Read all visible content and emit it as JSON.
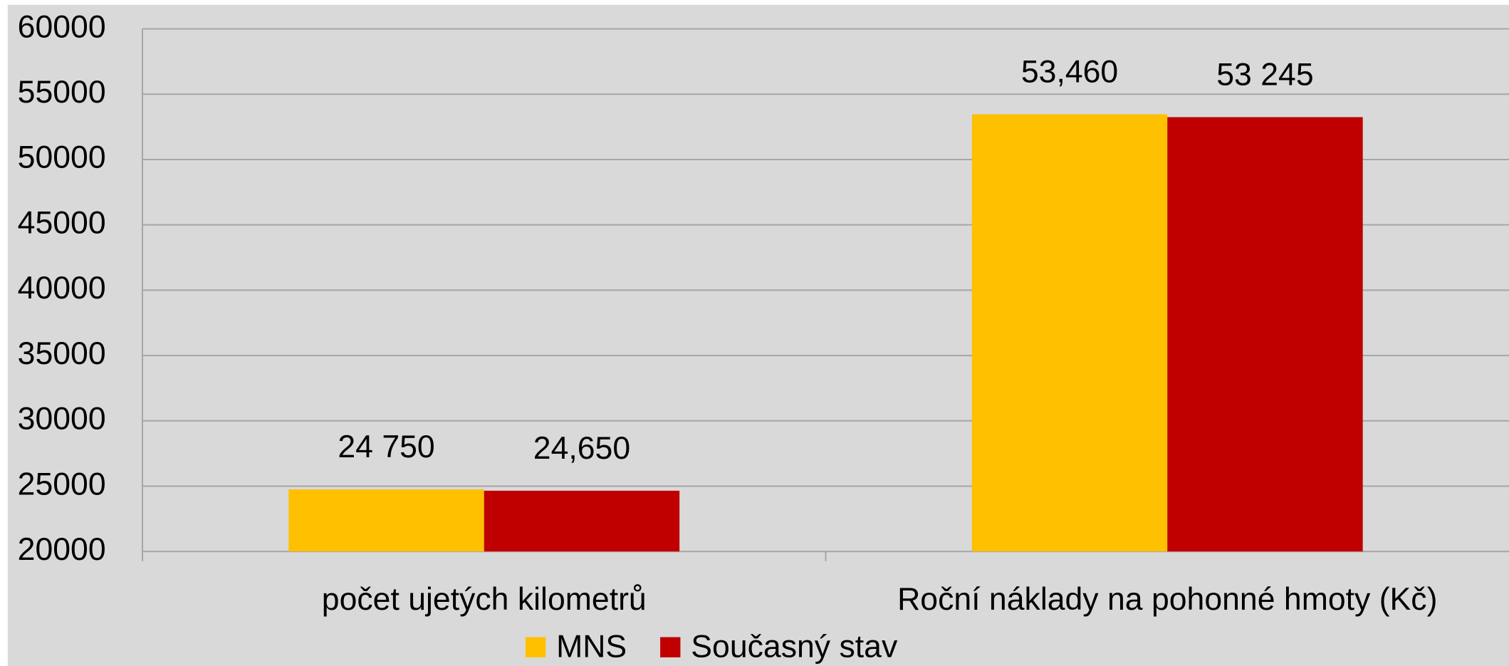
{
  "chart_data": {
    "type": "bar",
    "categories": [
      "počet ujetých kilometrů",
      "Roční náklady na pohonné hmoty (Kč)"
    ],
    "series": [
      {
        "name": "MNS",
        "color": "#ffc000",
        "values": [
          24750,
          53460
        ],
        "value_labels": [
          "24 750",
          "53,460"
        ]
      },
      {
        "name": "Současný stav",
        "color": "#c00000",
        "values": [
          24650,
          53245
        ],
        "value_labels": [
          "24,650",
          "53 245"
        ]
      }
    ],
    "ylim": [
      20000,
      60000
    ],
    "yticks": [
      20000,
      25000,
      30000,
      35000,
      40000,
      45000,
      50000,
      55000,
      60000
    ],
    "grid": true
  }
}
